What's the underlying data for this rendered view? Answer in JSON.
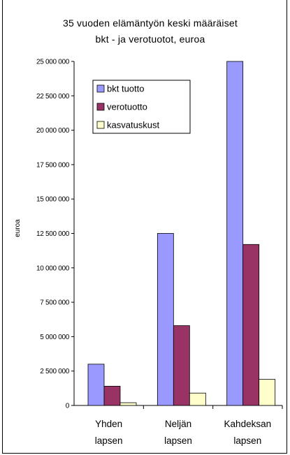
{
  "chart_data": {
    "type": "bar",
    "title_lines": [
      "35 vuoden elämäntyön keski määräiset",
      "bkt - ja verotuotot, euroa"
    ],
    "ylabel": "euroa",
    "xlabel": "",
    "categories": [
      [
        "Yhden",
        "lapsen"
      ],
      [
        "Neljän",
        "lapsen"
      ],
      [
        "Kahdeksan",
        "lapsen"
      ]
    ],
    "yticks": [
      "25 000 000",
      "22 500 000",
      "20 000 000",
      "17 500 000",
      "15 000 000",
      "12 500 000",
      "10 000 000",
      "7 500 000",
      "5 000 000",
      "2 500 000",
      "0"
    ],
    "ylim": [
      0,
      25000000
    ],
    "series": [
      {
        "name": "bkt tuotto",
        "color": "#9999ff",
        "values": [
          3000000,
          12500000,
          25000000
        ]
      },
      {
        "name": "verotuotto",
        "color": "#993366",
        "values": [
          1400000,
          5800000,
          11700000
        ]
      },
      {
        "name": "kasvatuskust",
        "color": "#ffffcc",
        "values": [
          200000,
          900000,
          1900000
        ]
      }
    ],
    "legend_position": "top-left",
    "grid": false
  }
}
